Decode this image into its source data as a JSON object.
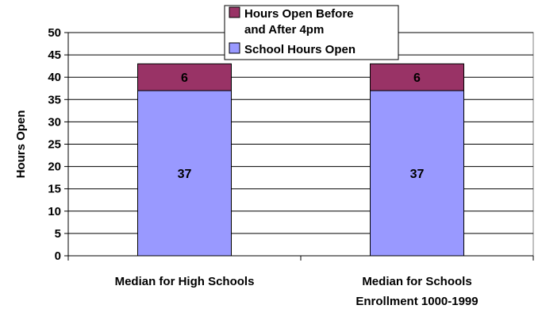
{
  "chart_data": {
    "type": "bar",
    "stacked": true,
    "categories": [
      [
        "Median for High Schools"
      ],
      [
        "Median for Schools",
        "Enrollment 1000-1999"
      ]
    ],
    "series": [
      {
        "name": "School Hours Open",
        "values": [
          37,
          37
        ],
        "color": "#9999ff"
      },
      {
        "name": "Hours Open Before and After 4pm",
        "values": [
          6,
          6
        ],
        "color": "#993366"
      }
    ],
    "legend": {
      "position": "top-center",
      "entries": [
        {
          "lines": [
            "Hours Open Before",
            "and After 4pm"
          ],
          "color": "#993366"
        },
        {
          "lines": [
            "School Hours Open"
          ],
          "color": "#9999ff"
        }
      ]
    },
    "ylabel": "Hours Open",
    "xlabel": "",
    "title": "",
    "ylim": [
      0,
      50
    ],
    "yticks": [
      0,
      5,
      10,
      15,
      20,
      25,
      30,
      35,
      40,
      45,
      50
    ],
    "grid": true
  }
}
